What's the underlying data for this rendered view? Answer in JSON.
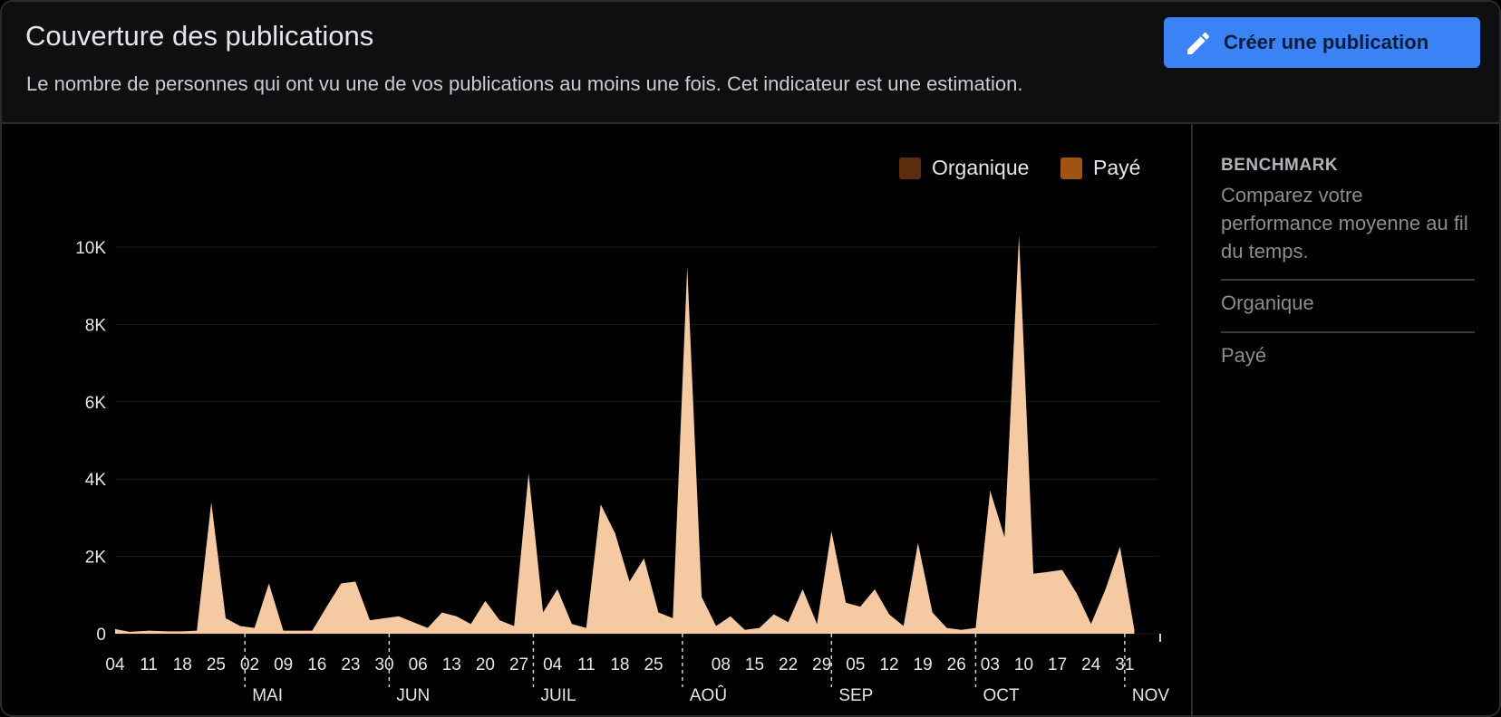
{
  "header": {
    "title": "Couverture des publications",
    "subtitle": "Le nombre de personnes qui ont vu une de vos publications au moins une fois. Cet indicateur est une estimation.",
    "create_button_label": "Créer une publication"
  },
  "legend": {
    "items": [
      {
        "label": "Organique",
        "color": "#5c2d0e"
      },
      {
        "label": "Payé",
        "color": "#a05312"
      }
    ]
  },
  "benchmark": {
    "title": "BENCHMARK",
    "description": "Comparez votre performance moyenne au fil du temps.",
    "rows": [
      "Organique",
      "Payé"
    ]
  },
  "chart_data": {
    "type": "area",
    "fill_color": "#f5c9a1",
    "ylim": [
      0,
      10000
    ],
    "yticks": [
      {
        "value": 0,
        "label": "0"
      },
      {
        "value": 2000,
        "label": "2K"
      },
      {
        "value": 4000,
        "label": "4K"
      },
      {
        "value": 6000,
        "label": "6K"
      },
      {
        "value": 8000,
        "label": "8K"
      },
      {
        "value": 10000,
        "label": "10K"
      }
    ],
    "xticks": [
      {
        "day": 0,
        "label": "04"
      },
      {
        "day": 7,
        "label": "11"
      },
      {
        "day": 14,
        "label": "18"
      },
      {
        "day": 21,
        "label": "25"
      },
      {
        "day": 28,
        "label": "02"
      },
      {
        "day": 35,
        "label": "09"
      },
      {
        "day": 42,
        "label": "16"
      },
      {
        "day": 49,
        "label": "23"
      },
      {
        "day": 56,
        "label": "30"
      },
      {
        "day": 63,
        "label": "06"
      },
      {
        "day": 70,
        "label": "13"
      },
      {
        "day": 77,
        "label": "20"
      },
      {
        "day": 84,
        "label": "27"
      },
      {
        "day": 91,
        "label": "04"
      },
      {
        "day": 98,
        "label": "11"
      },
      {
        "day": 105,
        "label": "18"
      },
      {
        "day": 112,
        "label": "25"
      },
      {
        "day": 126,
        "label": "08"
      },
      {
        "day": 133,
        "label": "15"
      },
      {
        "day": 140,
        "label": "22"
      },
      {
        "day": 147,
        "label": "29"
      },
      {
        "day": 154,
        "label": "05"
      },
      {
        "day": 161,
        "label": "12"
      },
      {
        "day": 168,
        "label": "19"
      },
      {
        "day": 175,
        "label": "26"
      },
      {
        "day": 182,
        "label": "03"
      },
      {
        "day": 189,
        "label": "10"
      },
      {
        "day": 196,
        "label": "17"
      },
      {
        "day": 203,
        "label": "24"
      },
      {
        "day": 210,
        "label": "31"
      }
    ],
    "months": [
      {
        "day": 27,
        "label": "MAI"
      },
      {
        "day": 57,
        "label": "JUN"
      },
      {
        "day": 87,
        "label": "JUIL"
      },
      {
        "day": 118,
        "label": "AOÛ"
      },
      {
        "day": 149,
        "label": "SEP"
      },
      {
        "day": 179,
        "label": "OCT"
      },
      {
        "day": 210,
        "label": "NOV"
      }
    ],
    "x_max_day": 217,
    "series": [
      {
        "values": [
          [
            0,
            120
          ],
          [
            3,
            50
          ],
          [
            7,
            80
          ],
          [
            11,
            60
          ],
          [
            14,
            60
          ],
          [
            17,
            80
          ],
          [
            20,
            3400
          ],
          [
            23,
            400
          ],
          [
            26,
            200
          ],
          [
            29,
            150
          ],
          [
            32,
            1300
          ],
          [
            35,
            80
          ],
          [
            38,
            80
          ],
          [
            41,
            80
          ],
          [
            44,
            700
          ],
          [
            47,
            1300
          ],
          [
            50,
            1350
          ],
          [
            53,
            350
          ],
          [
            56,
            400
          ],
          [
            59,
            450
          ],
          [
            62,
            300
          ],
          [
            65,
            150
          ],
          [
            68,
            550
          ],
          [
            71,
            450
          ],
          [
            74,
            250
          ],
          [
            77,
            850
          ],
          [
            80,
            350
          ],
          [
            83,
            200
          ],
          [
            86,
            4150
          ],
          [
            89,
            550
          ],
          [
            92,
            1150
          ],
          [
            95,
            250
          ],
          [
            98,
            150
          ],
          [
            101,
            3350
          ],
          [
            104,
            2600
          ],
          [
            107,
            1350
          ],
          [
            110,
            1950
          ],
          [
            113,
            550
          ],
          [
            116,
            400
          ],
          [
            119,
            9500
          ],
          [
            122,
            950
          ],
          [
            125,
            200
          ],
          [
            128,
            450
          ],
          [
            131,
            100
          ],
          [
            134,
            150
          ],
          [
            137,
            500
          ],
          [
            140,
            300
          ],
          [
            143,
            1150
          ],
          [
            146,
            250
          ],
          [
            149,
            2650
          ],
          [
            152,
            800
          ],
          [
            155,
            700
          ],
          [
            158,
            1150
          ],
          [
            161,
            500
          ],
          [
            164,
            200
          ],
          [
            167,
            2350
          ],
          [
            170,
            550
          ],
          [
            173,
            150
          ],
          [
            176,
            100
          ],
          [
            179,
            150
          ],
          [
            182,
            3700
          ],
          [
            185,
            2500
          ],
          [
            188,
            10300
          ],
          [
            191,
            1550
          ],
          [
            194,
            1600
          ],
          [
            197,
            1650
          ],
          [
            200,
            1050
          ],
          [
            203,
            250
          ],
          [
            206,
            1150
          ],
          [
            209,
            2250
          ],
          [
            212,
            100
          ]
        ]
      }
    ]
  }
}
